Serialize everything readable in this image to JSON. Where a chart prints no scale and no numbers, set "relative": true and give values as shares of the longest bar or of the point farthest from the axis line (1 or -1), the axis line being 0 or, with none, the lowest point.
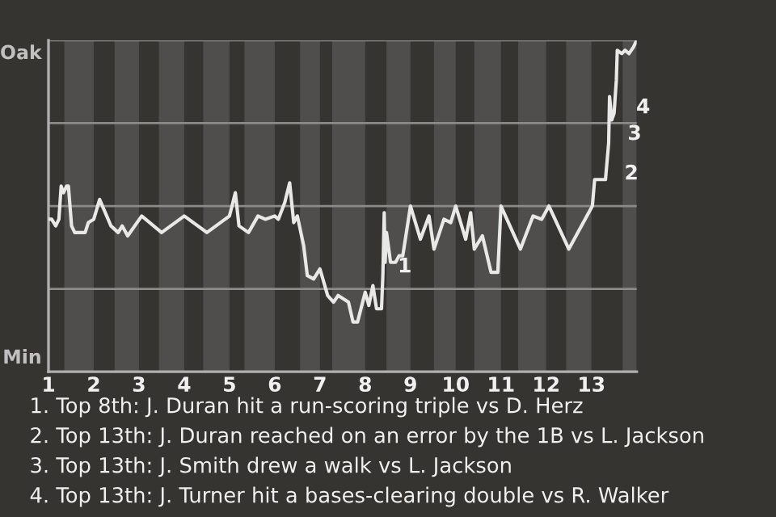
{
  "chart_data": {
    "type": "line",
    "x": [
      1.0,
      1.07,
      1.16,
      1.23,
      1.28,
      1.33,
      1.4,
      1.44,
      1.51,
      1.58,
      1.81,
      1.88,
      2.0,
      2.13,
      2.38,
      2.54,
      2.63,
      2.75,
      3.06,
      3.5,
      4.0,
      4.5,
      5.0,
      5.13,
      5.21,
      5.42,
      5.63,
      5.79,
      6.0,
      6.08,
      6.22,
      6.33,
      6.42,
      6.5,
      6.64,
      6.72,
      6.86,
      7.0,
      7.17,
      7.3,
      7.4,
      7.63,
      7.73,
      7.83,
      8.0,
      8.08,
      8.17,
      8.25,
      8.36,
      8.39,
      8.42,
      8.44,
      8.47,
      8.56,
      8.67,
      8.75,
      8.83,
      9.0,
      9.22,
      9.41,
      9.52,
      9.74,
      9.89,
      10.0,
      10.22,
      10.33,
      10.41,
      10.59,
      10.78,
      10.93,
      11.0,
      11.43,
      11.71,
      11.9,
      12.06,
      12.5,
      13.02,
      13.07,
      13.31,
      13.38,
      13.4,
      13.45,
      13.5,
      13.55,
      13.57,
      13.67,
      13.74,
      13.83,
      13.93,
      14.0
    ],
    "series": [
      {
        "color": "#e8e8e6",
        "values": [
          0.46,
          0.46,
          0.44,
          0.46,
          0.56,
          0.54,
          0.56,
          0.56,
          0.44,
          0.42,
          0.42,
          0.45,
          0.46,
          0.52,
          0.44,
          0.42,
          0.44,
          0.41,
          0.47,
          0.42,
          0.47,
          0.42,
          0.47,
          0.54,
          0.44,
          0.42,
          0.47,
          0.46,
          0.47,
          0.46,
          0.51,
          0.57,
          0.45,
          0.47,
          0.38,
          0.29,
          0.28,
          0.31,
          0.23,
          0.21,
          0.23,
          0.21,
          0.15,
          0.15,
          0.24,
          0.2,
          0.26,
          0.19,
          0.19,
          0.29,
          0.48,
          0.33,
          0.42,
          0.33,
          0.33,
          0.35,
          0.35,
          0.5,
          0.4,
          0.47,
          0.37,
          0.46,
          0.45,
          0.5,
          0.4,
          0.48,
          0.37,
          0.41,
          0.3,
          0.3,
          0.5,
          0.37,
          0.47,
          0.46,
          0.5,
          0.37,
          0.5,
          0.58,
          0.58,
          0.69,
          0.83,
          0.76,
          0.78,
          0.88,
          0.97,
          0.96,
          0.97,
          0.96,
          0.98,
          1.0
        ]
      }
    ],
    "relative": true,
    "xlim": [
      1,
      14
    ],
    "xticks": [
      1,
      2,
      3,
      4,
      5,
      6,
      7,
      8,
      9,
      10,
      11,
      12,
      13
    ],
    "line_style": "solid",
    "ref_lines": [
      {
        "axis": "y",
        "value": 0.25,
        "color": "#8a8a88"
      },
      {
        "axis": "y",
        "value": 0.5,
        "color": "#8a8a88"
      },
      {
        "axis": "y",
        "value": 0.75,
        "color": "#8a8a88"
      },
      {
        "axis": "y",
        "value": 1.0,
        "color": "#8a8a88"
      }
    ],
    "bands": [
      {
        "axis": "x",
        "from": 1.35,
        "to": 2.0,
        "color": "#4f4e4c"
      },
      {
        "axis": "x",
        "from": 2.46,
        "to": 3.0,
        "color": "#4f4e4c"
      },
      {
        "axis": "x",
        "from": 3.44,
        "to": 4.0,
        "color": "#4f4e4c"
      },
      {
        "axis": "x",
        "from": 4.42,
        "to": 5.0,
        "color": "#4f4e4c"
      },
      {
        "axis": "x",
        "from": 5.33,
        "to": 6.0,
        "color": "#4f4e4c"
      },
      {
        "axis": "x",
        "from": 6.56,
        "to": 7.0,
        "color": "#4f4e4c"
      },
      {
        "axis": "x",
        "from": 7.27,
        "to": 8.0,
        "color": "#4f4e4c"
      },
      {
        "axis": "x",
        "from": 8.47,
        "to": 9.0,
        "color": "#4f4e4c"
      },
      {
        "axis": "x",
        "from": 9.52,
        "to": 10.0,
        "color": "#4f4e4c"
      },
      {
        "axis": "x",
        "from": 10.41,
        "to": 11.0,
        "color": "#4f4e4c"
      },
      {
        "axis": "x",
        "from": 11.38,
        "to": 12.0,
        "color": "#4f4e4c"
      },
      {
        "axis": "x",
        "from": 12.44,
        "to": 13.0,
        "color": "#4f4e4c"
      },
      {
        "axis": "x",
        "from": 13.69,
        "to": 14.0,
        "color": "#4f4e4c"
      }
    ],
    "annotations": [
      "Oak",
      "Min",
      {
        "text": "1",
        "x": 8.42,
        "y": 0.33
      },
      {
        "text": "2",
        "x": 13.43,
        "y": 0.61
      },
      {
        "text": "3",
        "x": 13.5,
        "y": 0.73
      },
      {
        "text": "4",
        "x": 13.69,
        "y": 0.81
      },
      "1. Top 8th: J. Duran hit a run-scoring triple vs D. Herz",
      "2. Top 13th: J. Duran reached on an error by the 1B vs L. Jackson",
      "3. Top 13th: J. Smith drew a walk vs L. Jackson",
      "4. Top 13th: J. Turner hit a bases-clearing double vs R. Walker"
    ]
  }
}
